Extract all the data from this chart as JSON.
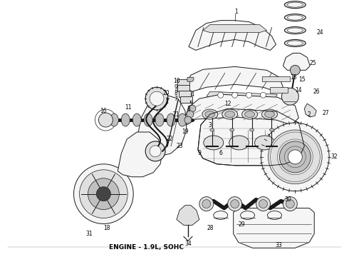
{
  "title": "ENGINE - 1.9L, SOHC",
  "title_fontsize": 6.5,
  "bg_color": "#ffffff",
  "fig_width": 4.9,
  "fig_height": 3.6,
  "dpi": 100,
  "text_color": "#000000",
  "line_color": "#1a1a1a",
  "fill_light": "#f5f5f5",
  "fill_mid": "#e0e0e0",
  "fill_dark": "#c0c0c0",
  "fill_black": "#444444"
}
